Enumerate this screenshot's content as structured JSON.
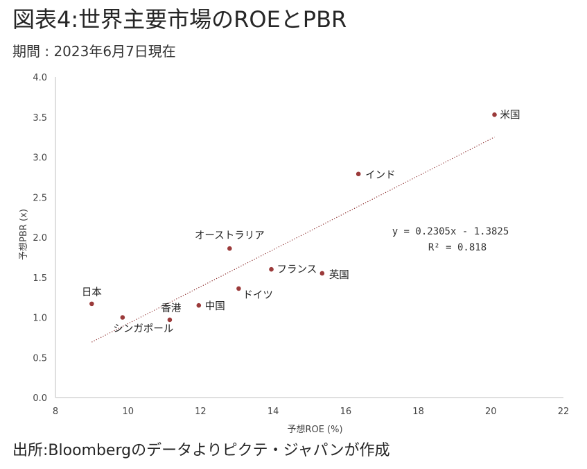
{
  "header": {
    "title": "図表4:世界主要市場のROEとPBR",
    "subtitle": "期間 : 2023年6月7日現在"
  },
  "footer": {
    "source": "出所:Bloombergのデータよりピクテ・ジャパンが作成"
  },
  "chart_data": {
    "type": "scatter",
    "title": "",
    "xlabel": "予想ROE (%)",
    "ylabel": "予想PBR (x)",
    "xlim": [
      8,
      22
    ],
    "ylim": [
      0,
      4
    ],
    "x_ticks": [
      "8",
      "10",
      "12",
      "14",
      "16",
      "18",
      "20",
      "22"
    ],
    "y_ticks": [
      "0.0",
      "0.5",
      "1.0",
      "1.5",
      "2.0",
      "2.5",
      "3.0",
      "3.5",
      "4.0"
    ],
    "grid": false,
    "marker_color": "#9b3a3a",
    "trendline_color": "#8b2a2a",
    "points": [
      {
        "label": "米国",
        "x": 20.1,
        "y": 3.53
      },
      {
        "label": "インド",
        "x": 16.35,
        "y": 2.79
      },
      {
        "label": "オーストラリア",
        "x": 12.8,
        "y": 1.86
      },
      {
        "label": "フランス",
        "x": 13.95,
        "y": 1.6
      },
      {
        "label": "英国",
        "x": 15.35,
        "y": 1.55
      },
      {
        "label": "ドイツ",
        "x": 13.05,
        "y": 1.36
      },
      {
        "label": "日本",
        "x": 9.0,
        "y": 1.17
      },
      {
        "label": "中国",
        "x": 11.95,
        "y": 1.15
      },
      {
        "label": "香港",
        "x": 11.15,
        "y": 0.97
      },
      {
        "label": "シンガポール",
        "x": 9.85,
        "y": 1.0
      }
    ],
    "trendline": {
      "slope": 0.2305,
      "intercept": -1.3825,
      "x_range": [
        9.0,
        20.1
      ],
      "equation": "y = 0.2305x - 1.3825",
      "r_squared": "R² = 0.818"
    }
  }
}
